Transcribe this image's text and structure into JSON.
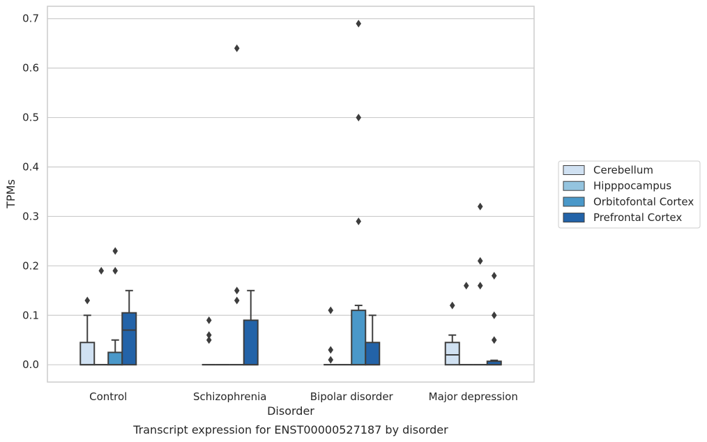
{
  "chart_data": {
    "type": "box",
    "caption": "Transcript expression for ENST00000527187 by disorder",
    "xlabel": "Disorder",
    "ylabel": "TPMs",
    "ylim": [
      -0.035,
      0.725
    ],
    "yticks": [
      0.0,
      0.1,
      0.2,
      0.3,
      0.4,
      0.5,
      0.6,
      0.7
    ],
    "ytick_labels": [
      "0.0",
      "0.1",
      "0.2",
      "0.3",
      "0.4",
      "0.5",
      "0.6",
      "0.7"
    ],
    "grid": "horizontal",
    "legend_position": "right",
    "categories": [
      "Control",
      "Schizophrenia",
      "Bipolar disorder",
      "Major depression"
    ],
    "series": [
      {
        "name": "Cerebellum",
        "color": "#d0e1f2",
        "boxes": [
          {
            "q1": 0.0,
            "median": 0.0,
            "q3": 0.045,
            "whisker_low": 0.0,
            "whisker_high": 0.1,
            "outliers": [
              0.13
            ]
          },
          {
            "q1": 0.0,
            "median": 0.0,
            "q3": 0.0,
            "whisker_low": 0.0,
            "whisker_high": 0.0,
            "outliers": [
              0.05,
              0.06,
              0.09
            ]
          },
          {
            "q1": 0.0,
            "median": 0.0,
            "q3": 0.0,
            "whisker_low": 0.0,
            "whisker_high": 0.0,
            "outliers": [
              0.01,
              0.03,
              0.11
            ]
          },
          {
            "q1": 0.0,
            "median": 0.02,
            "q3": 0.045,
            "whisker_low": 0.0,
            "whisker_high": 0.06,
            "outliers": [
              0.12
            ]
          }
        ]
      },
      {
        "name": "Hipppocampus",
        "color": "#94c4df",
        "boxes": [
          {
            "q1": 0.0,
            "median": 0.0,
            "q3": 0.0,
            "whisker_low": 0.0,
            "whisker_high": 0.0,
            "outliers": [
              0.19
            ]
          },
          {
            "q1": 0.0,
            "median": 0.0,
            "q3": 0.0,
            "whisker_low": 0.0,
            "whisker_high": 0.0,
            "outliers": []
          },
          {
            "q1": 0.0,
            "median": 0.0,
            "q3": 0.0,
            "whisker_low": 0.0,
            "whisker_high": 0.0,
            "outliers": []
          },
          {
            "q1": 0.0,
            "median": 0.0,
            "q3": 0.0,
            "whisker_low": 0.0,
            "whisker_high": 0.0,
            "outliers": [
              0.16
            ]
          }
        ]
      },
      {
        "name": "Orbitofontal Cortex",
        "color": "#4a98c9",
        "boxes": [
          {
            "q1": 0.0,
            "median": 0.0,
            "q3": 0.025,
            "whisker_low": 0.0,
            "whisker_high": 0.05,
            "outliers": [
              0.19,
              0.23
            ]
          },
          {
            "q1": 0.0,
            "median": 0.0,
            "q3": 0.0,
            "whisker_low": 0.0,
            "whisker_high": 0.0,
            "outliers": [
              0.13,
              0.15,
              0.64
            ]
          },
          {
            "q1": 0.0,
            "median": 0.0,
            "q3": 0.11,
            "whisker_low": 0.0,
            "whisker_high": 0.12,
            "outliers": [
              0.29,
              0.5,
              0.69
            ]
          },
          {
            "q1": 0.0,
            "median": 0.0,
            "q3": 0.0,
            "whisker_low": 0.0,
            "whisker_high": 0.0,
            "outliers": [
              0.16,
              0.21,
              0.32
            ]
          }
        ]
      },
      {
        "name": "Prefrontal Cortex",
        "color": "#2363a8",
        "boxes": [
          {
            "q1": 0.0,
            "median": 0.07,
            "q3": 0.105,
            "whisker_low": 0.0,
            "whisker_high": 0.15,
            "outliers": []
          },
          {
            "q1": 0.0,
            "median": 0.0,
            "q3": 0.09,
            "whisker_low": 0.0,
            "whisker_high": 0.15,
            "outliers": []
          },
          {
            "q1": 0.0,
            "median": 0.0,
            "q3": 0.045,
            "whisker_low": 0.0,
            "whisker_high": 0.1,
            "outliers": []
          },
          {
            "q1": 0.0,
            "median": 0.0,
            "q3": 0.007,
            "whisker_low": 0.0,
            "whisker_high": 0.009,
            "outliers": [
              0.05,
              0.1,
              0.18
            ]
          }
        ]
      }
    ]
  }
}
